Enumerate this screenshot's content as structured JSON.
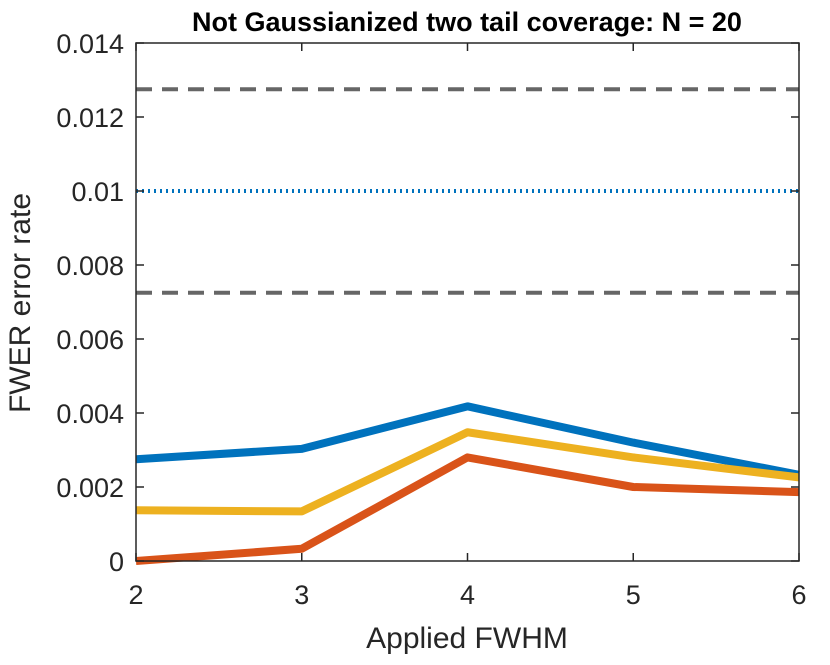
{
  "chart_data": {
    "type": "line",
    "title": "Not Gaussianized two tail coverage: N = 20",
    "xlabel": "Applied FWHM",
    "ylabel": "FWER error rate",
    "x": [
      2,
      3,
      4,
      5,
      6
    ],
    "xlim": [
      2,
      6
    ],
    "ylim": [
      0,
      0.014
    ],
    "xticks": [
      "2",
      "3",
      "4",
      "5",
      "6"
    ],
    "yticks": [
      "0",
      "0.002",
      "0.004",
      "0.006",
      "0.008",
      "0.01",
      "0.012",
      "0.014"
    ],
    "grid": false,
    "series": [
      {
        "values": [
          0.00275,
          0.00303,
          0.00418,
          0.0032,
          0.00233
        ],
        "color": "#0072BD",
        "style": "solid"
      },
      {
        "values": [
          0.00137,
          0.00134,
          0.00348,
          0.0028,
          0.00226
        ],
        "color": "#EDB120",
        "style": "solid"
      },
      {
        "values": [
          0.0,
          0.00033,
          0.0028,
          0.002,
          0.00186
        ],
        "color": "#D95319",
        "style": "solid"
      }
    ],
    "reference_lines": [
      {
        "y": 0.01,
        "color": "#0072BD",
        "style": "dotted"
      },
      {
        "y": 0.01275,
        "color": "#666666",
        "style": "dashed"
      },
      {
        "y": 0.00725,
        "color": "#666666",
        "style": "dashed"
      }
    ]
  }
}
